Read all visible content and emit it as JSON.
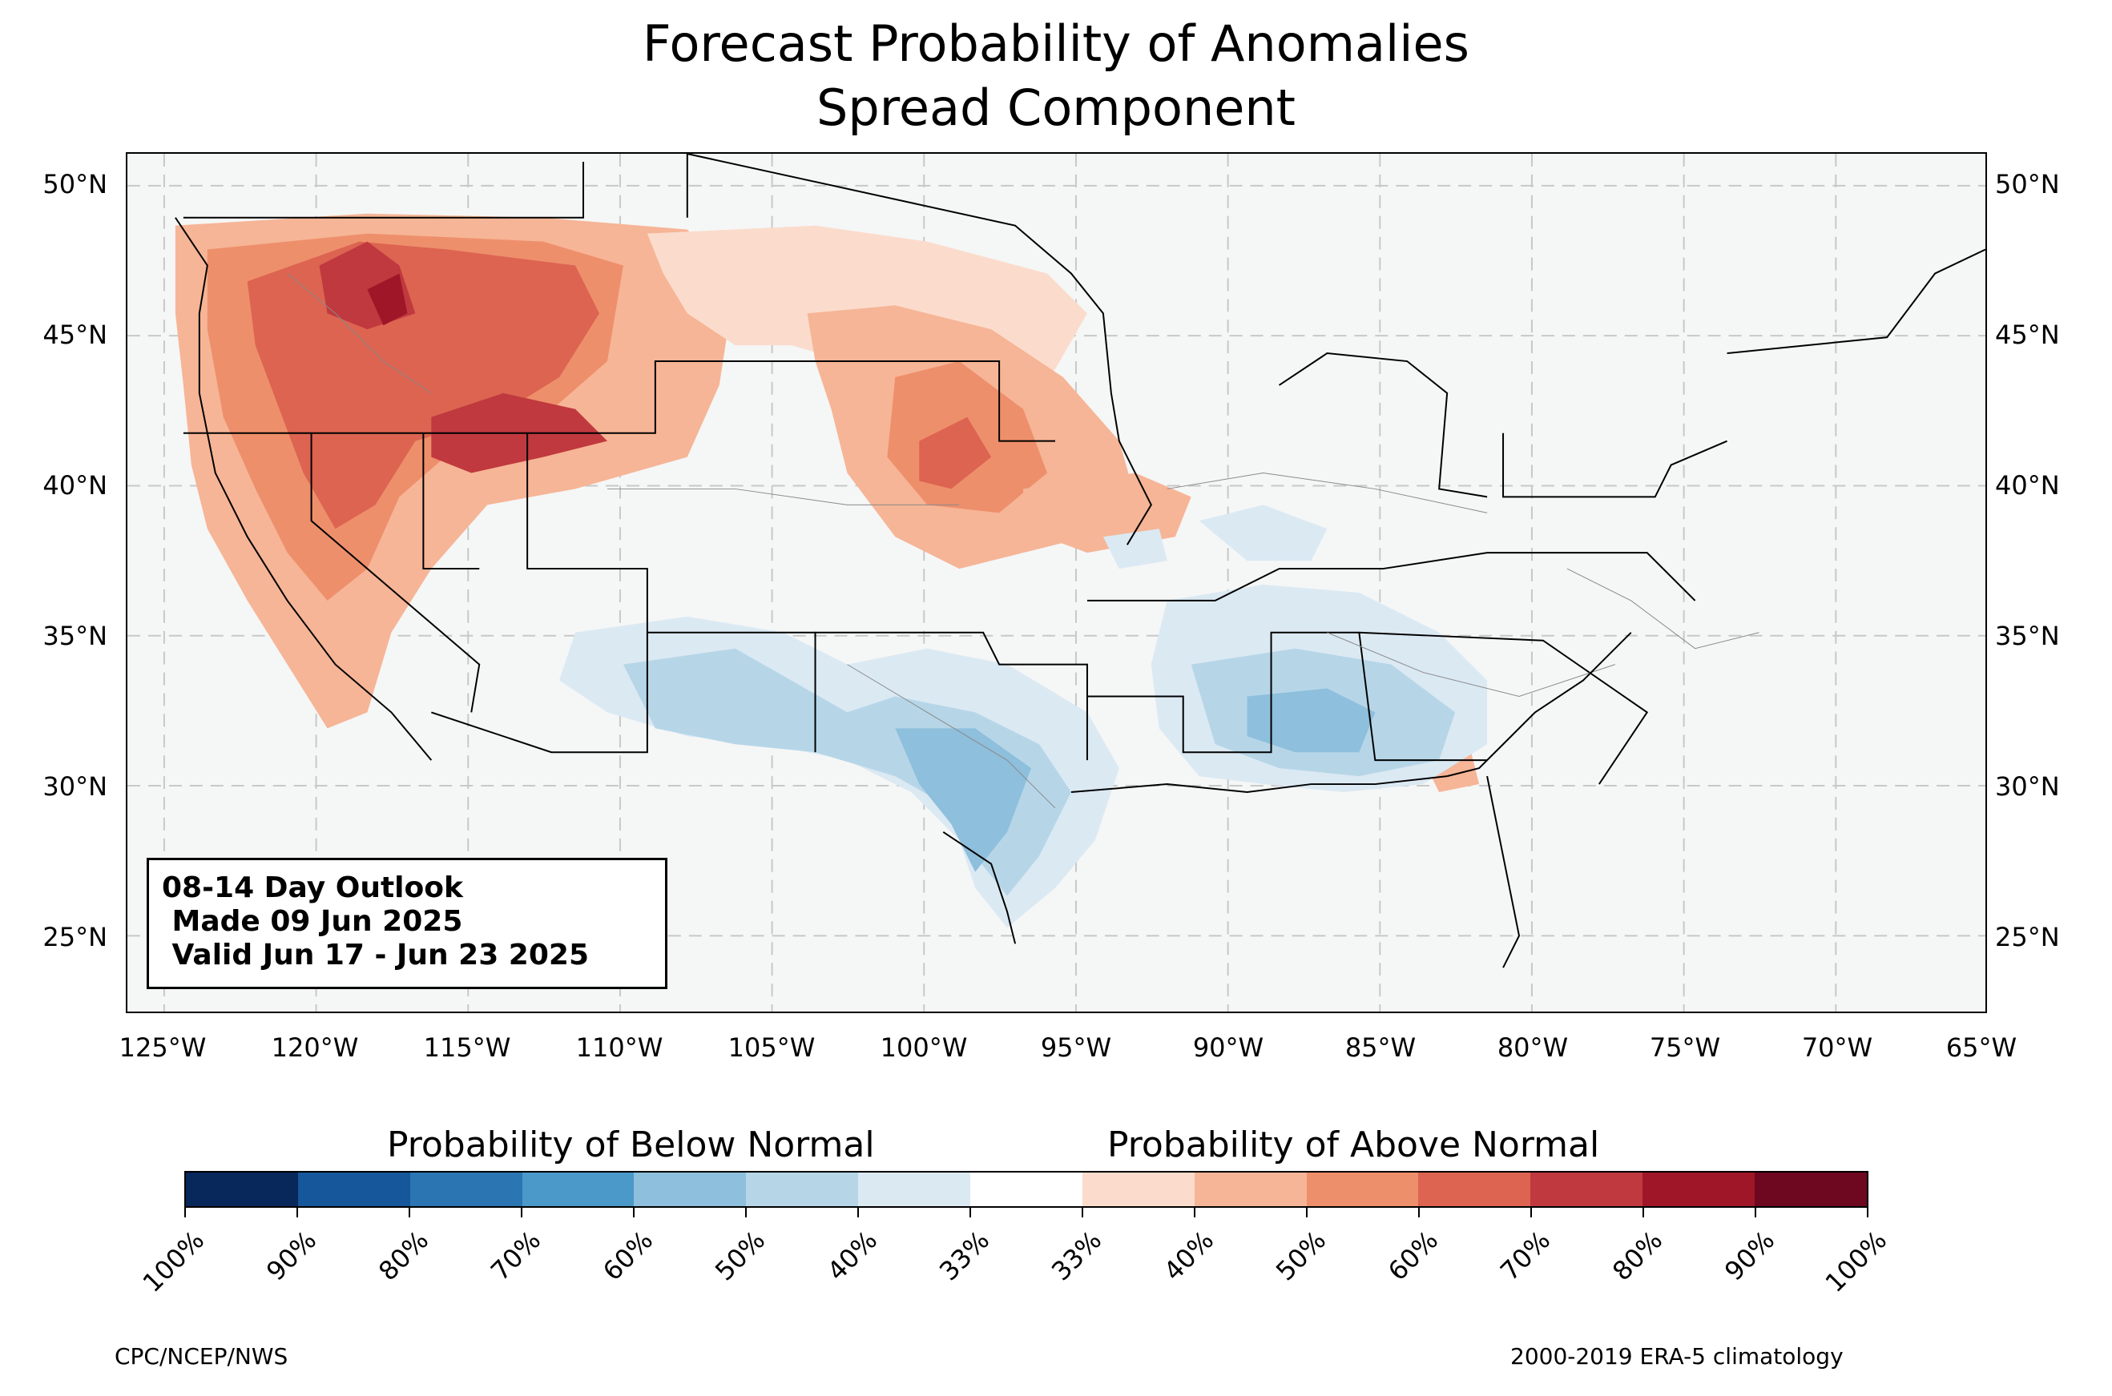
{
  "title": {
    "line1": "Forecast Probability of Anomalies",
    "line2": "Spread Component"
  },
  "map": {
    "lat_labels": [
      "50°N",
      "45°N",
      "40°N",
      "35°N",
      "30°N",
      "25°N"
    ],
    "lon_labels": [
      "125°W",
      "120°W",
      "115°W",
      "110°W",
      "105°W",
      "100°W",
      "95°W",
      "90°W",
      "85°W",
      "80°W",
      "75°W",
      "70°W",
      "65°W"
    ],
    "colors": {
      "land": "#f5f6f6",
      "border": "#000000",
      "county_lines": "#8a8a8a",
      "grid": "#c8c8c8"
    }
  },
  "info_box": {
    "line1": "08-14 Day Outlook",
    "line2": " Made 09 Jun 2025",
    "line3": " Valid Jun 17 - Jun 23 2025"
  },
  "colorbar": {
    "below_title": "Probability of Below Normal",
    "above_title": "Probability of Above Normal",
    "colors": [
      "#08275a",
      "#15579a",
      "#2b75b3",
      "#4a99c9",
      "#8ebfdc",
      "#b6d6e8",
      "#dbe9f3",
      "#ffffff",
      "#fbdccc",
      "#f6b596",
      "#ee8f6b",
      "#dc6451",
      "#c0393e",
      "#9f1628",
      "#6d0820"
    ],
    "labels": [
      "100%",
      "90%",
      "80%",
      "70%",
      "60%",
      "50%",
      "40%",
      "33%",
      "33%",
      "40%",
      "50%",
      "60%",
      "70%",
      "80%",
      "90%",
      "100%"
    ]
  },
  "footer": {
    "left": "CPC/NCEP/NWS",
    "right": "2000-2019 ERA-5 climatology"
  }
}
